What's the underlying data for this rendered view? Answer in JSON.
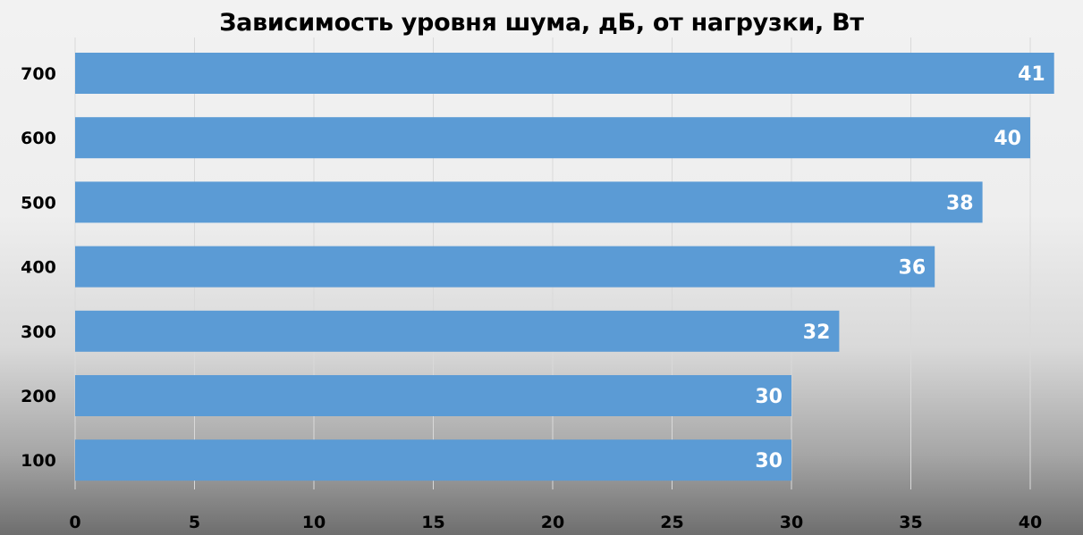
{
  "chart_data": {
    "type": "bar",
    "orientation": "horizontal",
    "title": "Зависимость уровня шума, дБ, от нагрузки, Вт",
    "xlabel": "",
    "ylabel": "",
    "categories": [
      "100",
      "200",
      "300",
      "400",
      "500",
      "600",
      "700"
    ],
    "values": [
      30,
      30,
      32,
      36,
      38,
      40,
      41
    ],
    "data_labels": [
      "30",
      "30",
      "32",
      "36",
      "38",
      "40",
      "41"
    ],
    "xlim": [
      0,
      40
    ],
    "x_ticks": [
      0,
      5,
      10,
      15,
      20,
      25,
      30,
      35,
      40
    ],
    "x_tick_labels": [
      "0",
      "5",
      "10",
      "15",
      "20",
      "25",
      "30",
      "35",
      "40"
    ],
    "grid": true,
    "legend": "none",
    "bar_color": "#5b9bd5",
    "gridline_color": "#d9d9d9",
    "label_color": "#ffffff"
  }
}
